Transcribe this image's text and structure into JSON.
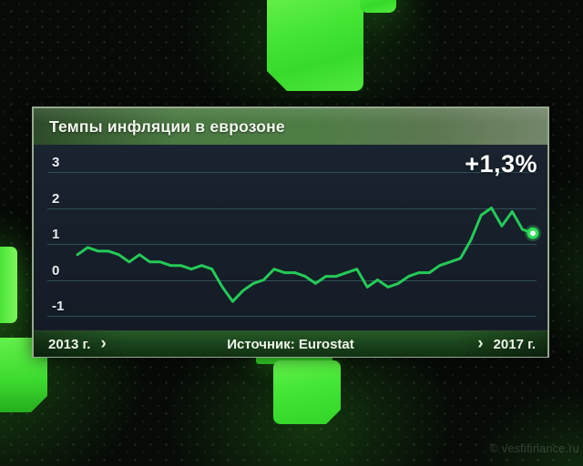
{
  "panel": {
    "title": "Темпы инфляции в еврозоне",
    "value_label": "+1,3%",
    "footer": {
      "start_year": "2013 г.",
      "source": "Источник: Eurostat",
      "end_year": "2017 г.",
      "chevron": "›"
    }
  },
  "watermark": "© vestifinance.ru",
  "colors": {
    "line": "#24ca56",
    "marker_outer": "#2edd58",
    "marker_inner": "#f2fff4",
    "grid": "#2d5058",
    "accent_green": "#3fe531",
    "panel_bg": "#161e28"
  },
  "chart_data": {
    "type": "line",
    "title": "Темпы инфляции в еврозоне",
    "unit": "%",
    "x_start_label": "2013 г.",
    "x_end_label": "2017 г.",
    "source": "Источник: Eurostat",
    "yticks": [
      3,
      2,
      1,
      0,
      -1
    ],
    "ylim": [
      -1.5,
      3.8
    ],
    "grid": true,
    "legend": false,
    "last_value_label": "+1,3%",
    "last_value": 1.3,
    "values": [
      0.7,
      0.9,
      0.8,
      0.8,
      0.7,
      0.5,
      0.7,
      0.5,
      0.5,
      0.4,
      0.4,
      0.3,
      0.4,
      0.3,
      -0.2,
      -0.6,
      -0.3,
      -0.1,
      0.0,
      0.3,
      0.2,
      0.2,
      0.1,
      -0.1,
      0.1,
      0.1,
      0.2,
      0.3,
      -0.2,
      0.0,
      -0.2,
      -0.1,
      0.1,
      0.2,
      0.2,
      0.4,
      0.5,
      0.6,
      1.1,
      1.8,
      2.0,
      1.5,
      1.9,
      1.4,
      1.3
    ]
  }
}
